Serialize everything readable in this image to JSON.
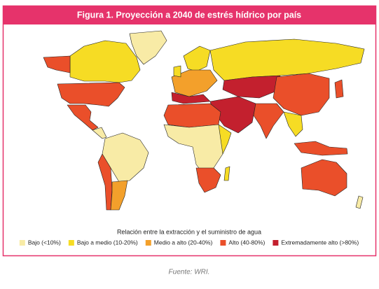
{
  "header": {
    "title": "Figura 1. Proyección a 2040 de estrés hídrico por país"
  },
  "legend": {
    "title": "Relación entre la extracción y el suministro de agua",
    "items": [
      {
        "label": "Bajo (<10%)",
        "color": "#f8eba6"
      },
      {
        "label": "Bajo a medio (10-20%)",
        "color": "#f6dc24"
      },
      {
        "label": "Medio a alto (20-40%)",
        "color": "#f3a02b"
      },
      {
        "label": "Alto (40-80%)",
        "color": "#ea4f2a"
      },
      {
        "label": "Extremadamente alto (>80%)",
        "color": "#c3202e"
      }
    ]
  },
  "source": "Fuente: WRI."
}
